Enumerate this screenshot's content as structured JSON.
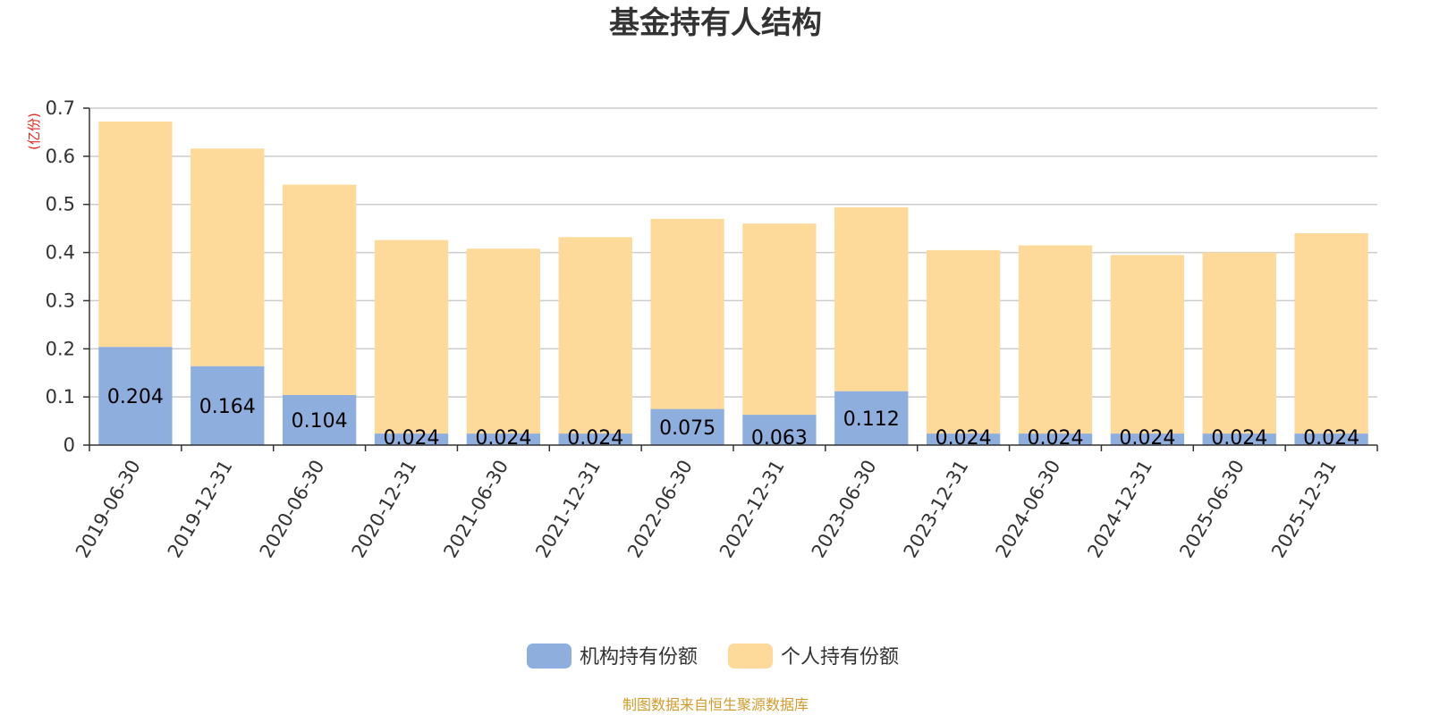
{
  "colors": {
    "institutional": "#8eaedd",
    "individual": "#fdd99a",
    "unit": "#e0281f",
    "source": "#d09b2c",
    "grid": "#cccccc",
    "axis": "#333333"
  },
  "source_note": "制图数据来自恒生聚源数据库",
  "chart_data": {
    "type": "bar",
    "stacked": true,
    "title": "基金持有人结构",
    "unit_label": "(亿份)",
    "categories": [
      "2019-06-30",
      "2019-12-31",
      "2020-06-30",
      "2020-12-31",
      "2021-06-30",
      "2021-12-31",
      "2022-06-30",
      "2022-12-31",
      "2023-06-30",
      "2023-12-31",
      "2024-06-30",
      "2024-12-31",
      "2025-06-30",
      "2025-12-31"
    ],
    "series": [
      {
        "name": "机构持有份额",
        "values": [
          0.204,
          0.164,
          0.104,
          0.024,
          0.024,
          0.024,
          0.075,
          0.063,
          0.112,
          0.024,
          0.024,
          0.024,
          0.024,
          0.024
        ],
        "labels": [
          "0.204",
          "0.164",
          "0.104",
          "0.024",
          "0.024",
          "0.024",
          "0.075",
          "0.063",
          "0.112",
          "0.024",
          "0.024",
          "0.024",
          "0.024",
          "0.024"
        ]
      },
      {
        "name": "个人持有份额",
        "values": [
          0.468,
          0.452,
          0.437,
          0.402,
          0.384,
          0.408,
          0.395,
          0.397,
          0.382,
          0.381,
          0.391,
          0.371,
          0.376,
          0.416
        ]
      }
    ],
    "ylim": [
      0,
      0.7
    ],
    "yticks": [
      "0",
      "0.1",
      "0.2",
      "0.3",
      "0.4",
      "0.5",
      "0.6",
      "0.7"
    ],
    "grid": true,
    "legend": "bottom-center"
  }
}
